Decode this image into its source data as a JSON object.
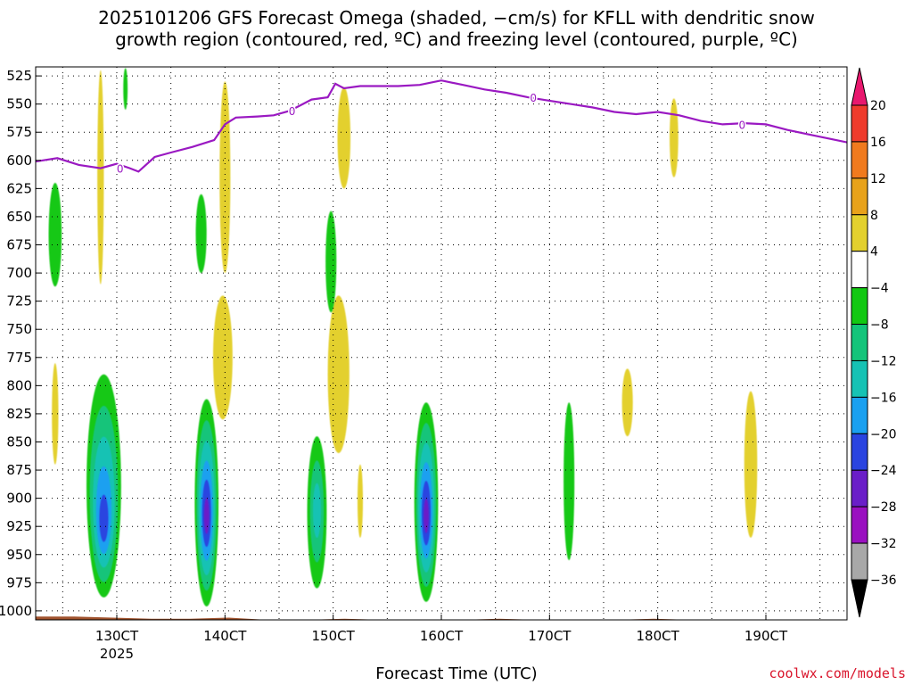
{
  "title": "2025101206 GFS Forecast Omega (shaded, −cm/s) for KFLL with dendritic snow\ngrowth region (contoured, red, ºC) and freezing level (contoured, purple, ºC)",
  "credit": "coolwx.com/models",
  "colors": {
    "freezing_line": "#9a19c2",
    "terrain": "#a0522d",
    "grid": "#000000"
  },
  "chart_data": {
    "type": "heatmap",
    "title": "2025101206 GFS Forecast Omega (shaded, −cm/s) for KFLL with dendritic snow growth region (contoured, red, ºC) and freezing level (contoured, purple, ºC)",
    "xlabel": "Forecast Time (UTC)",
    "ylabel": "",
    "xlim": [
      122.5,
      197.5
    ],
    "ylim": [
      1008,
      517
    ],
    "x_ticks": [
      {
        "value": 130,
        "label": "130CT",
        "sub": "2025"
      },
      {
        "value": 140,
        "label": "140CT",
        "sub": ""
      },
      {
        "value": 150,
        "label": "150CT",
        "sub": ""
      },
      {
        "value": 160,
        "label": "160CT",
        "sub": ""
      },
      {
        "value": 170,
        "label": "170CT",
        "sub": ""
      },
      {
        "value": 180,
        "label": "180CT",
        "sub": ""
      },
      {
        "value": 190,
        "label": "190CT",
        "sub": ""
      }
    ],
    "y_ticks": [
      525,
      550,
      575,
      600,
      625,
      650,
      675,
      700,
      725,
      750,
      775,
      800,
      825,
      850,
      875,
      900,
      925,
      950,
      975,
      1000
    ],
    "colorbar": {
      "levels": [
        "20",
        "16",
        "12",
        "8",
        "4",
        "−4",
        "−8",
        "−12",
        "−16",
        "−20",
        "−24",
        "−28",
        "−32",
        "−36"
      ],
      "colors": [
        "#e8186e",
        "#ef3b2c",
        "#f07a1e",
        "#e8a21b",
        "#e3d02e",
        "#ffffff",
        "#12c812",
        "#14c47a",
        "#16c2b4",
        "#1aa0f0",
        "#2a44e0",
        "#6a1ec8",
        "#9a10c0",
        "#a8a8a8",
        "#000000"
      ]
    },
    "freezing_level": {
      "label": "0",
      "x": [
        122.5,
        124.5,
        126.5,
        128.5,
        130,
        131.2,
        132,
        133.5,
        135,
        137,
        139,
        140,
        141,
        143,
        144.5,
        146,
        148,
        149.5,
        150.2,
        151,
        152.5,
        154,
        156,
        158,
        160,
        162,
        164,
        166,
        168,
        170,
        172,
        174,
        176,
        178,
        180,
        182,
        184,
        186,
        188,
        190,
        192,
        194,
        196,
        197.5
      ],
      "hPa": [
        601,
        598,
        604,
        607,
        603,
        607,
        610,
        597,
        593,
        588,
        582,
        568,
        562,
        561,
        560,
        556,
        546,
        544,
        532,
        536,
        534,
        534,
        534,
        533,
        529,
        533,
        537,
        540,
        544,
        547,
        550,
        553,
        557,
        559,
        557,
        560,
        565,
        568,
        567,
        568,
        573,
        577,
        581,
        584
      ]
    },
    "terrain_hPa": [
      1005,
      1005,
      1006,
      1007,
      1007,
      1006,
      1008,
      1008,
      1007,
      1008,
      1009,
      1008,
      1007,
      1008,
      1009,
      1008,
      1007,
      1008,
      1008,
      1009,
      1009,
      1008
    ],
    "omega_cells": [
      {
        "x": 128.8,
        "p": 925,
        "half_width": 1.6,
        "top": 790,
        "bottom": 988,
        "values": [
          -4,
          -8,
          -12,
          -16,
          -20
        ]
      },
      {
        "x": 138.3,
        "p": 918,
        "half_width": 1.1,
        "top": 812,
        "bottom": 996,
        "values": [
          -4,
          -8,
          -12,
          -16,
          -20,
          -24
        ]
      },
      {
        "x": 148.5,
        "p": 910,
        "half_width": 0.9,
        "top": 845,
        "bottom": 980,
        "values": [
          -4,
          -8,
          -12
        ]
      },
      {
        "x": 158.6,
        "p": 918,
        "half_width": 1.1,
        "top": 815,
        "bottom": 992,
        "values": [
          -4,
          -8,
          -12,
          -16,
          -20,
          -24
        ]
      },
      {
        "x": 171.8,
        "p": 895,
        "half_width": 0.5,
        "top": 815,
        "bottom": 955,
        "values": [
          -4
        ]
      },
      {
        "x": 124.3,
        "p": 666,
        "half_width": 0.6,
        "top": 620,
        "bottom": 712,
        "values": [
          -4
        ]
      },
      {
        "x": 137.8,
        "p": 663,
        "half_width": 0.5,
        "top": 630,
        "bottom": 700,
        "values": [
          -4
        ]
      },
      {
        "x": 149.8,
        "p": 692,
        "half_width": 0.5,
        "top": 645,
        "bottom": 735,
        "values": [
          -4
        ]
      },
      {
        "x": 130.8,
        "p": 532,
        "half_width": 0.2,
        "top": 518,
        "bottom": 555,
        "values": [
          -4
        ]
      }
    ],
    "omega_positive": [
      {
        "x": 124.3,
        "p": 825,
        "half_width": 0.3,
        "top": 780,
        "bottom": 870,
        "value": 4
      },
      {
        "x": 128.5,
        "p": 640,
        "half_width": 0.3,
        "top": 520,
        "bottom": 710,
        "value": 4
      },
      {
        "x": 140.0,
        "p": 600,
        "half_width": 0.5,
        "top": 530,
        "bottom": 700,
        "value": 4
      },
      {
        "x": 151.0,
        "p": 575,
        "half_width": 0.6,
        "top": 535,
        "bottom": 625,
        "value": 4
      },
      {
        "x": 150.5,
        "p": 790,
        "half_width": 1.0,
        "top": 720,
        "bottom": 860,
        "value": 4
      },
      {
        "x": 139.8,
        "p": 775,
        "half_width": 0.9,
        "top": 720,
        "bottom": 830,
        "value": 4
      },
      {
        "x": 181.5,
        "p": 580,
        "half_width": 0.4,
        "top": 545,
        "bottom": 615,
        "value": 4
      },
      {
        "x": 177.2,
        "p": 815,
        "half_width": 0.5,
        "top": 785,
        "bottom": 845,
        "value": 4
      },
      {
        "x": 188.6,
        "p": 860,
        "half_width": 0.6,
        "top": 805,
        "bottom": 935,
        "value": 4
      },
      {
        "x": 152.5,
        "p": 900,
        "half_width": 0.25,
        "top": 870,
        "bottom": 935,
        "value": 4
      }
    ]
  }
}
